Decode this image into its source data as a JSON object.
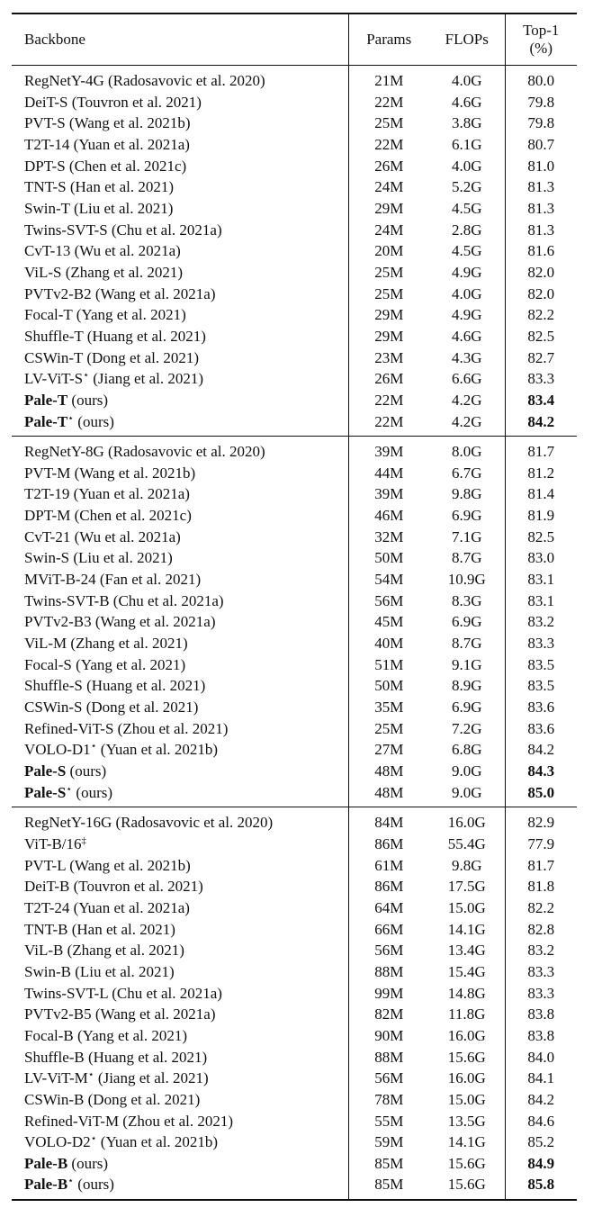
{
  "header": {
    "backbone": "Backbone",
    "params": "Params",
    "flops": "FLOPs",
    "top1_line1": "Top-1",
    "top1_line2": "(%)"
  },
  "groups": [
    {
      "rows": [
        {
          "name": "RegNetY-4G (Radosavovic et al. 2020)",
          "params": "21M",
          "flops": "4.0G",
          "top1": "80.0"
        },
        {
          "name": "DeiT-S (Touvron et al. 2021)",
          "params": "22M",
          "flops": "4.6G",
          "top1": "79.8"
        },
        {
          "name": "PVT-S (Wang et al. 2021b)",
          "params": "25M",
          "flops": "3.8G",
          "top1": "79.8"
        },
        {
          "name": "T2T-14 (Yuan et al. 2021a)",
          "params": "22M",
          "flops": "6.1G",
          "top1": "80.7"
        },
        {
          "name": "DPT-S (Chen et al. 2021c)",
          "params": "26M",
          "flops": "4.0G",
          "top1": "81.0"
        },
        {
          "name": "TNT-S (Han et al. 2021)",
          "params": "24M",
          "flops": "5.2G",
          "top1": "81.3"
        },
        {
          "name": "Swin-T (Liu et al. 2021)",
          "params": "29M",
          "flops": "4.5G",
          "top1": "81.3"
        },
        {
          "name": "Twins-SVT-S (Chu et al. 2021a)",
          "params": "24M",
          "flops": "2.8G",
          "top1": "81.3"
        },
        {
          "name": "CvT-13 (Wu et al. 2021a)",
          "params": "20M",
          "flops": "4.5G",
          "top1": "81.6"
        },
        {
          "name": "ViL-S (Zhang et al. 2021)",
          "params": "25M",
          "flops": "4.9G",
          "top1": "82.0"
        },
        {
          "name": "PVTv2-B2 (Wang et al. 2021a)",
          "params": "25M",
          "flops": "4.0G",
          "top1": "82.0"
        },
        {
          "name": "Focal-T (Yang et al. 2021)",
          "params": "29M",
          "flops": "4.9G",
          "top1": "82.2"
        },
        {
          "name": "Shuffle-T (Huang et al. 2021)",
          "params": "29M",
          "flops": "4.6G",
          "top1": "82.5"
        },
        {
          "name": "CSWin-T (Dong et al. 2021)",
          "params": "23M",
          "flops": "4.3G",
          "top1": "82.7"
        },
        {
          "name_pre": "LV-ViT-S",
          "sup": "⋆",
          "name_post": " (Jiang et al. 2021)",
          "params": "26M",
          "flops": "6.6G",
          "top1": "83.3"
        },
        {
          "name_bold": "Pale-T",
          "name_post": " (ours)",
          "params": "22M",
          "flops": "4.2G",
          "top1": "83.4",
          "top1_bold": true
        },
        {
          "name_bold": "Pale-T",
          "sup": "⋆",
          "name_post": " (ours)",
          "params": "22M",
          "flops": "4.2G",
          "top1": "84.2",
          "top1_bold": true
        }
      ]
    },
    {
      "rows": [
        {
          "name": "RegNetY-8G (Radosavovic et al. 2020)",
          "params": "39M",
          "flops": "8.0G",
          "top1": "81.7"
        },
        {
          "name": "PVT-M (Wang et al. 2021b)",
          "params": "44M",
          "flops": "6.7G",
          "top1": "81.2"
        },
        {
          "name": "T2T-19 (Yuan et al. 2021a)",
          "params": "39M",
          "flops": "9.8G",
          "top1": "81.4"
        },
        {
          "name": "DPT-M (Chen et al. 2021c)",
          "params": "46M",
          "flops": "6.9G",
          "top1": "81.9"
        },
        {
          "name": "CvT-21 (Wu et al. 2021a)",
          "params": "32M",
          "flops": "7.1G",
          "top1": "82.5"
        },
        {
          "name": "Swin-S (Liu et al. 2021)",
          "params": "50M",
          "flops": "8.7G",
          "top1": "83.0"
        },
        {
          "name": "MViT-B-24 (Fan et al. 2021)",
          "params": "54M",
          "flops": "10.9G",
          "top1": "83.1"
        },
        {
          "name": "Twins-SVT-B (Chu et al. 2021a)",
          "params": "56M",
          "flops": "8.3G",
          "top1": "83.1"
        },
        {
          "name": "PVTv2-B3 (Wang et al. 2021a)",
          "params": "45M",
          "flops": "6.9G",
          "top1": "83.2"
        },
        {
          "name": "ViL-M (Zhang et al. 2021)",
          "params": "40M",
          "flops": "8.7G",
          "top1": "83.3"
        },
        {
          "name": "Focal-S (Yang et al. 2021)",
          "params": "51M",
          "flops": "9.1G",
          "top1": "83.5"
        },
        {
          "name": "Shuffle-S (Huang et al. 2021)",
          "params": "50M",
          "flops": "8.9G",
          "top1": "83.5"
        },
        {
          "name": "CSWin-S (Dong et al. 2021)",
          "params": "35M",
          "flops": "6.9G",
          "top1": "83.6"
        },
        {
          "name": "Refined-ViT-S (Zhou et al. 2021)",
          "params": "25M",
          "flops": "7.2G",
          "top1": "83.6"
        },
        {
          "name_pre": "VOLO-D1",
          "sup": "⋆",
          "name_post": " (Yuan et al. 2021b)",
          "params": "27M",
          "flops": "6.8G",
          "top1": "84.2"
        },
        {
          "name_bold": "Pale-S",
          "name_post": " (ours)",
          "params": "48M",
          "flops": "9.0G",
          "top1": "84.3",
          "top1_bold": true
        },
        {
          "name_bold": "Pale-S",
          "sup": "⋆",
          "name_post": " (ours)",
          "params": "48M",
          "flops": "9.0G",
          "top1": "85.0",
          "top1_bold": true
        }
      ]
    },
    {
      "rows": [
        {
          "name": "RegNetY-16G (Radosavovic et al. 2020)",
          "params": "84M",
          "flops": "16.0G",
          "top1": "82.9"
        },
        {
          "name_pre": "ViT-B/16",
          "sup": "‡",
          "name_post": "",
          "params": "86M",
          "flops": "55.4G",
          "top1": "77.9"
        },
        {
          "name": "PVT-L (Wang et al. 2021b)",
          "params": "61M",
          "flops": "9.8G",
          "top1": "81.7"
        },
        {
          "name": "DeiT-B (Touvron et al. 2021)",
          "params": "86M",
          "flops": "17.5G",
          "top1": "81.8"
        },
        {
          "name": "T2T-24 (Yuan et al. 2021a)",
          "params": "64M",
          "flops": "15.0G",
          "top1": "82.2"
        },
        {
          "name": "TNT-B (Han et al. 2021)",
          "params": "66M",
          "flops": "14.1G",
          "top1": "82.8"
        },
        {
          "name": "ViL-B (Zhang et al. 2021)",
          "params": "56M",
          "flops": "13.4G",
          "top1": "83.2"
        },
        {
          "name": "Swin-B (Liu et al. 2021)",
          "params": "88M",
          "flops": "15.4G",
          "top1": "83.3"
        },
        {
          "name": "Twins-SVT-L (Chu et al. 2021a)",
          "params": "99M",
          "flops": "14.8G",
          "top1": "83.3"
        },
        {
          "name": "PVTv2-B5 (Wang et al. 2021a)",
          "params": "82M",
          "flops": "11.8G",
          "top1": "83.8"
        },
        {
          "name": "Focal-B (Yang et al. 2021)",
          "params": "90M",
          "flops": "16.0G",
          "top1": "83.8"
        },
        {
          "name": "Shuffle-B (Huang et al. 2021)",
          "params": "88M",
          "flops": "15.6G",
          "top1": "84.0"
        },
        {
          "name_pre": "LV-ViT-M",
          "sup": "⋆",
          "name_post": " (Jiang et al. 2021)",
          "params": "56M",
          "flops": "16.0G",
          "top1": "84.1"
        },
        {
          "name": "CSWin-B (Dong et al. 2021)",
          "params": "78M",
          "flops": "15.0G",
          "top1": "84.2"
        },
        {
          "name": "Refined-ViT-M (Zhou et al. 2021)",
          "params": "55M",
          "flops": "13.5G",
          "top1": "84.6"
        },
        {
          "name_pre": "VOLO-D2",
          "sup": "⋆",
          "name_post": " (Yuan et al. 2021b)",
          "params": "59M",
          "flops": "14.1G",
          "top1": "85.2"
        },
        {
          "name_bold": "Pale-B",
          "name_post": " (ours)",
          "params": "85M",
          "flops": "15.6G",
          "top1": "84.9",
          "top1_bold": true
        },
        {
          "name_bold": "Pale-B",
          "sup": "⋆",
          "name_post": " (ours)",
          "params": "85M",
          "flops": "15.6G",
          "top1": "85.8",
          "top1_bold": true
        }
      ]
    }
  ]
}
